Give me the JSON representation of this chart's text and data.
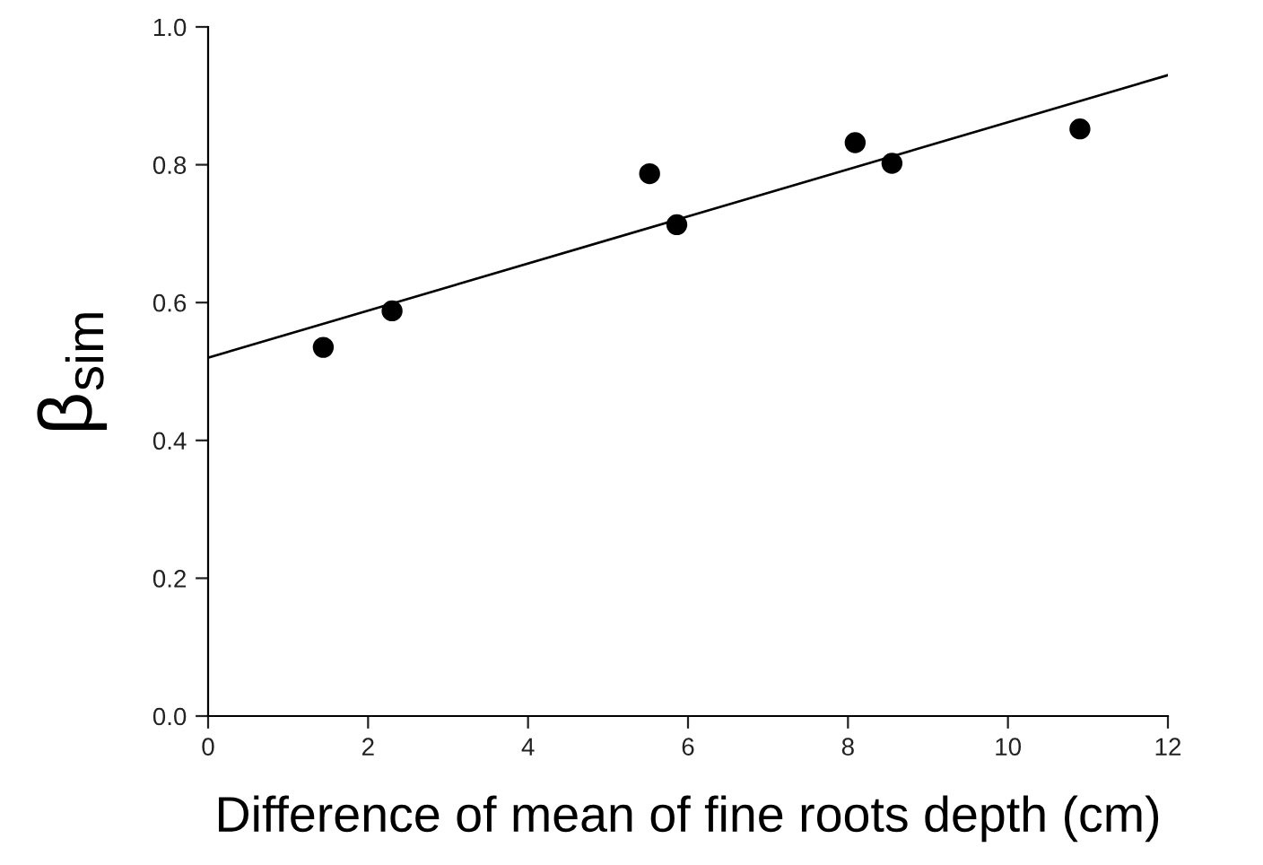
{
  "chart_data": {
    "type": "scatter",
    "xlabel": "Difference of mean of fine roots depth (cm)",
    "ylabel": "β$_{sim}$",
    "series": [
      {
        "color": "#000000",
        "marker": "circle",
        "x": [
          1.44,
          2.3,
          5.52,
          5.86,
          8.09,
          8.55,
          10.9
        ],
        "values": [
          0.535,
          0.588,
          0.787,
          0.713,
          0.832,
          0.802,
          0.852
        ]
      },
      {
        "type": "line",
        "color": "#000000",
        "marker": "none",
        "line_style": "solid",
        "x": [
          0,
          12
        ],
        "values": [
          0.52,
          0.93
        ]
      }
    ],
    "xlim": [
      0,
      12
    ],
    "xticks": [
      0,
      2,
      4,
      6,
      8,
      10,
      12
    ],
    "ylim": [
      0,
      1.0
    ],
    "yticks": [
      {
        "value": 0,
        "label": "0.0"
      },
      {
        "value": 0.2,
        "label": "0.2"
      },
      {
        "value": 0.4,
        "label": "0.4"
      },
      {
        "value": 0.6,
        "label": "0.6"
      },
      {
        "value": 0.8,
        "label": "0.8"
      },
      {
        "value": 1.0,
        "label": "1.0"
      }
    ],
    "grid": false,
    "legend": false
  }
}
